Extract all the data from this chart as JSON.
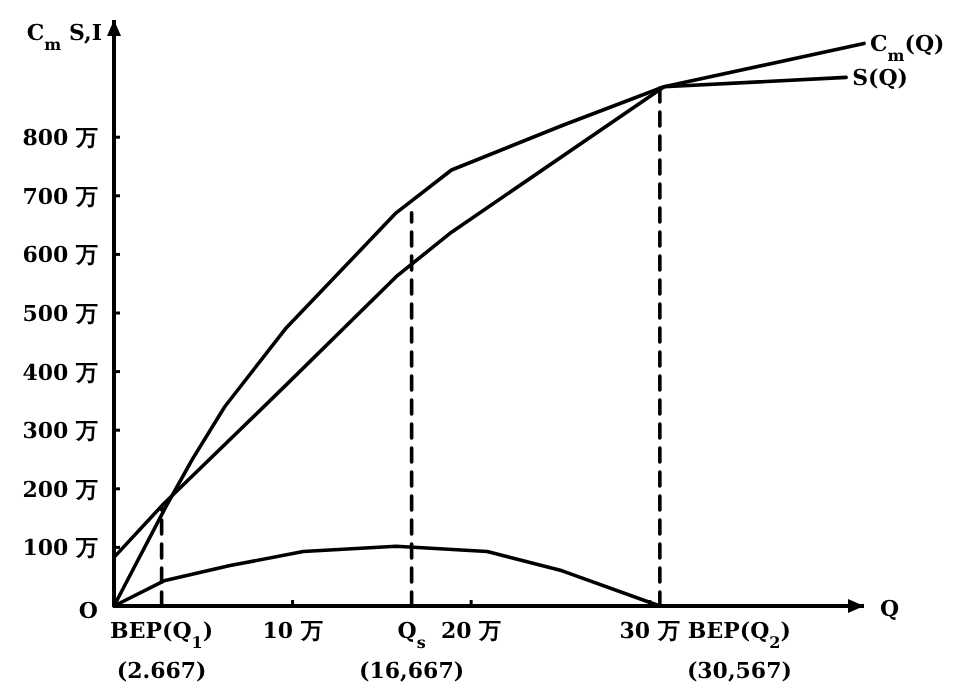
{
  "chart_data": {
    "type": "line",
    "xlabel": "Q",
    "ylabel": "C$_{m}$ S,I",
    "xlim": [
      0,
      42
    ],
    "ylim": [
      0,
      1000
    ],
    "xticks": [
      {
        "value": 10,
        "label": "10 万"
      },
      {
        "value": 20,
        "label": "20 万"
      },
      {
        "value": 30,
        "label": "30 万"
      }
    ],
    "yticks": [
      {
        "value": 0,
        "label": "O"
      },
      {
        "value": 100,
        "label": "100 万"
      },
      {
        "value": 200,
        "label": "200 万"
      },
      {
        "value": 300,
        "label": "300 万"
      },
      {
        "value": 400,
        "label": "400 万"
      },
      {
        "value": 500,
        "label": "500 万"
      },
      {
        "value": 600,
        "label": "600 万"
      },
      {
        "value": 700,
        "label": "700 万"
      },
      {
        "value": 800,
        "label": "800 万"
      }
    ],
    "grid": false,
    "legend": false,
    "series": [
      {
        "name": "C$_{m}$(Q)",
        "color": "#000000",
        "x": [
          0,
          2.8,
          9.6,
          15.8,
          18.9,
          30.8,
          42
        ],
        "values": [
          83,
          175,
          376,
          562,
          638,
          886,
          960
        ]
      },
      {
        "name": "S(Q)",
        "color": "#000000",
        "x": [
          0,
          1.3,
          2.9,
          4.4,
          6.2,
          9.6,
          15.8,
          18.9,
          25.1,
          30.8,
          41
        ],
        "values": [
          0,
          76,
          169,
          251,
          340,
          473,
          671,
          744,
          820,
          886,
          902
        ]
      },
      {
        "color": "#000000",
        "x": [
          0,
          2.8,
          6.5,
          10.6,
          15.8,
          20.9,
          25.1,
          30.567
        ],
        "values": [
          0,
          43,
          69,
          93,
          102,
          93,
          60,
          0
        ]
      },
      {
        "color": "#000000",
        "line_style": "dashed",
        "x": [
          2.667,
          2.667
        ],
        "values": [
          0,
          169
        ]
      },
      {
        "color": "#000000",
        "line_style": "dashed",
        "x": [
          16.667,
          16.667
        ],
        "values": [
          0,
          671
        ]
      },
      {
        "color": "#000000",
        "line_style": "dashed",
        "x": [
          30.567,
          30.567
        ],
        "values": [
          0,
          886
        ]
      }
    ],
    "annotations": [
      {
        "text": "BEP(Q$_{1}$)",
        "x": 2.667,
        "y": 0
      },
      {
        "text": "(2.667)",
        "x": 2.667,
        "y": 0
      },
      {
        "text": "Q$_{s}$",
        "x": 16.667,
        "y": 0
      },
      {
        "text": "(16,667)",
        "x": 16.667,
        "y": 0
      },
      {
        "text": "BEP(Q$_{2}$)",
        "x": 30.567,
        "y": 0
      },
      {
        "text": "(30,567)",
        "x": 30.567,
        "y": 0
      }
    ]
  }
}
